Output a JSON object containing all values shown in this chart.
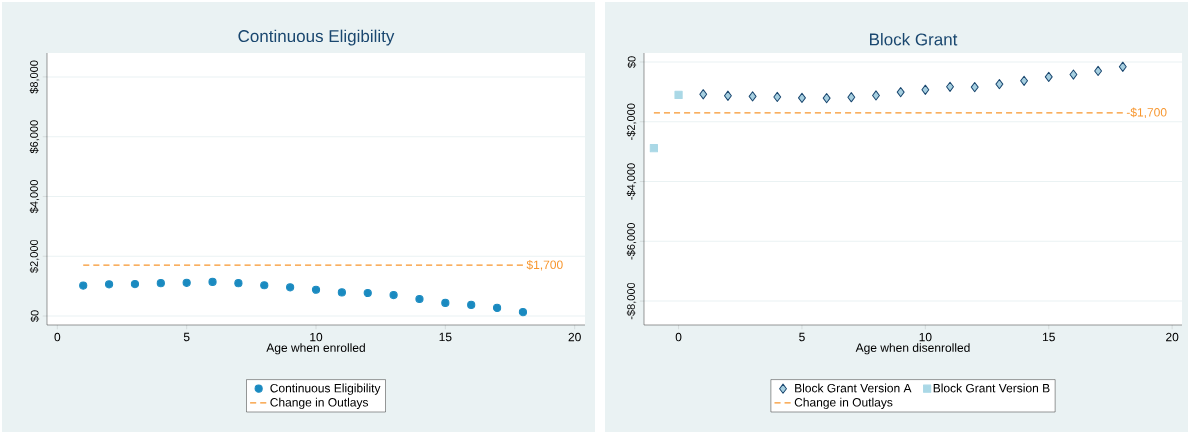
{
  "chart_data": [
    {
      "type": "scatter",
      "title": "Continuous Eligibility",
      "xlabel": "Age when enrolled",
      "xlim": [
        -0.4,
        20.4
      ],
      "ylim": [
        -300,
        8800
      ],
      "xticks": [
        0,
        5,
        10,
        15,
        20
      ],
      "yticks": [
        {
          "value": 0,
          "label": "$0"
        },
        {
          "value": 2000,
          "label": "$2,000"
        },
        {
          "value": 4000,
          "label": "$4,000"
        },
        {
          "value": 6000,
          "label": "$6,000"
        },
        {
          "value": 8000,
          "label": "$8,000"
        }
      ],
      "grid": "y",
      "legend": "bottom",
      "series": [
        {
          "name": "Continuous Eligibility",
          "marker": "circle",
          "color": "#1a8ac0",
          "x": [
            1,
            2,
            3,
            4,
            5,
            6,
            7,
            8,
            9,
            10,
            11,
            12,
            13,
            14,
            15,
            16,
            17,
            18
          ],
          "values": [
            1020,
            1060,
            1070,
            1100,
            1110,
            1140,
            1100,
            1030,
            960,
            880,
            790,
            770,
            700,
            570,
            440,
            370,
            270,
            130
          ]
        },
        {
          "name": "Change in Outlays",
          "type": "line",
          "line_style": "dashed",
          "color": "#f7952c",
          "x": [
            1,
            18
          ],
          "values": [
            1700,
            1700
          ]
        }
      ],
      "annotations": [
        {
          "text": "$1,700",
          "x": 18,
          "y": 1700
        }
      ]
    },
    {
      "type": "scatter",
      "title": "Block Grant",
      "xlabel": "Age when disenrolled",
      "xlim": [
        -1.4,
        20.4
      ],
      "ylim": [
        -8800,
        300
      ],
      "xticks": [
        0,
        5,
        10,
        15,
        20
      ],
      "yticks": [
        {
          "value": -8000,
          "label": "-$8,000"
        },
        {
          "value": -6000,
          "label": "-$6,000"
        },
        {
          "value": -4000,
          "label": "-$4,000"
        },
        {
          "value": -2000,
          "label": "-$2,000"
        },
        {
          "value": 0,
          "label": "$0"
        }
      ],
      "grid": "y",
      "legend": "bottom",
      "series": [
        {
          "name": "Block Grant Version A",
          "marker": "diamond",
          "color": "#a6cfe0",
          "x": [
            1,
            2,
            3,
            4,
            5,
            6,
            7,
            8,
            9,
            10,
            11,
            12,
            13,
            14,
            15,
            16,
            17,
            18
          ],
          "values": [
            -1080,
            -1130,
            -1150,
            -1170,
            -1200,
            -1210,
            -1180,
            -1120,
            -1010,
            -930,
            -830,
            -840,
            -740,
            -630,
            -500,
            -420,
            -300,
            -160
          ]
        },
        {
          "name": "Block Grant Version B",
          "marker": "square",
          "color": "#aad8e6",
          "x": [
            -1,
            0
          ],
          "values": [
            -2880,
            -1100
          ]
        },
        {
          "name": "Change in Outlays",
          "type": "line",
          "line_style": "dashed",
          "color": "#f7952c",
          "x": [
            -1,
            18
          ],
          "values": [
            -1700,
            -1700
          ]
        }
      ],
      "annotations": [
        {
          "text": "-$1,700",
          "x": 18,
          "y": -1700
        }
      ]
    }
  ]
}
